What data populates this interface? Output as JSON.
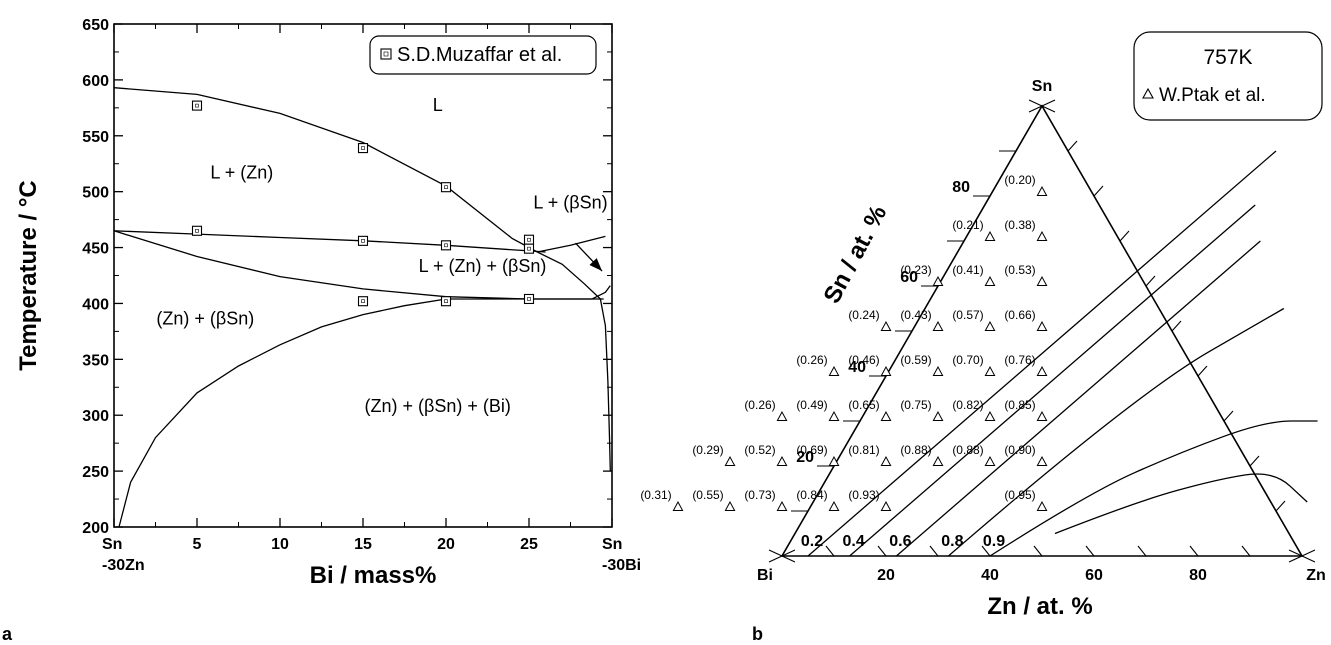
{
  "panel_a": {
    "label": "a",
    "chart_data": {
      "type": "scatter",
      "xlabel": "Bi  / mass%",
      "ylabel": "Temperature / °C",
      "xlim": [
        0,
        30
      ],
      "ylim": [
        200,
        650
      ],
      "xticks": [
        {
          "v": 0,
          "l1": "Sn",
          "l2": "-30Zn"
        },
        {
          "v": 5,
          "l1": "5",
          "l2": ""
        },
        {
          "v": 10,
          "l1": "10",
          "l2": ""
        },
        {
          "v": 15,
          "l1": "15",
          "l2": ""
        },
        {
          "v": 20,
          "l1": "20",
          "l2": ""
        },
        {
          "v": 25,
          "l1": "25",
          "l2": ""
        },
        {
          "v": 30,
          "l1": "Sn",
          "l2": "-30Bi"
        }
      ],
      "yticks": [
        200,
        250,
        300,
        350,
        400,
        450,
        500,
        550,
        600,
        650
      ],
      "legend": {
        "text": "S.D.Muzaffar et al.",
        "placement": "top-right",
        "marker": "square"
      },
      "series": [
        {
          "name": "S.D.Muzaffar et al.",
          "marker": "square",
          "x": [
            5,
            5,
            15,
            15,
            15,
            20,
            20,
            20,
            25,
            25,
            25
          ],
          "y": [
            577,
            465,
            539,
            456,
            402,
            504,
            452,
            402,
            457,
            449,
            404
          ]
        }
      ],
      "phase_boundaries": [
        {
          "x": [
            0,
            5,
            10,
            15,
            20,
            24,
            25.5
          ],
          "y": [
            593,
            587,
            570,
            544,
            505,
            458,
            446
          ]
        },
        {
          "x": [
            0,
            5,
            10,
            15,
            20,
            25,
            26
          ],
          "y": [
            465,
            462,
            459,
            456,
            452,
            447,
            446
          ]
        },
        {
          "x": [
            0,
            5,
            10,
            15,
            20,
            25,
            28.8
          ],
          "y": [
            465,
            442,
            424,
            413,
            406,
            404,
            404
          ]
        },
        {
          "x": [
            25.5,
            27.5,
            29.6
          ],
          "y": [
            446,
            452,
            460
          ]
        },
        {
          "x": [
            25.5,
            27,
            28.3,
            29.3
          ],
          "y": [
            446,
            435,
            418,
            404
          ]
        },
        {
          "x": [
            0.3,
            1,
            2.5,
            5,
            7.5,
            10,
            12.5,
            15,
            17.5,
            20
          ],
          "y": [
            200,
            240,
            280,
            320,
            344,
            363,
            379,
            390,
            398,
            404
          ]
        },
        {
          "x": [
            20,
            25,
            29.5
          ],
          "y": [
            404,
            404,
            404
          ]
        },
        {
          "x": [
            28.8,
            29.6,
            29.9
          ],
          "y": [
            404,
            410,
            416
          ]
        },
        {
          "x": [
            29.3,
            29.6,
            29.75,
            29.85,
            29.9
          ],
          "y": [
            404,
            380,
            330,
            280,
            250
          ]
        }
      ],
      "region_labels": [
        {
          "text": "L",
          "x": 19.5,
          "y": 572
        },
        {
          "text": "L + (Zn)",
          "x": 7.7,
          "y": 512
        },
        {
          "text": "L + (βSn)",
          "x": 27.5,
          "y": 485
        },
        {
          "text": "L + (Zn) + (βSn)",
          "x": 22.2,
          "y": 428
        },
        {
          "text": "(Zn) + (βSn)",
          "x": 5.5,
          "y": 381
        },
        {
          "text": "(Zn) + (βSn) + (Bi)",
          "x": 19.5,
          "y": 303
        }
      ],
      "annotation_arrow": {
        "from": {
          "x": 27.8,
          "y": 454
        },
        "to": {
          "x": 29.4,
          "y": 429
        }
      }
    }
  },
  "panel_b": {
    "label": "b",
    "chart_data": {
      "type": "scatter",
      "diagram": "ternary",
      "title": "757K",
      "corners": {
        "top": "Sn",
        "left": "Bi",
        "right": "Zn"
      },
      "xlabel": "Zn  / at. %",
      "ylabel": "Sn  / at. %",
      "xticks": [
        20,
        40,
        60,
        80
      ],
      "yticks": [
        20,
        40,
        60,
        80
      ],
      "legend": {
        "text": "W.Ptak et al.",
        "placement": "top-right",
        "marker": "triangle"
      },
      "points": [
        {
          "zn": 10,
          "sn": 80,
          "label": "(0.20)"
        },
        {
          "zn": 5,
          "sn": 70,
          "label": "(0.21)"
        },
        {
          "zn": 15,
          "sn": 70,
          "label": "(0.38)"
        },
        {
          "zn": 0,
          "sn": 60,
          "label": "(0.23)"
        },
        {
          "zn": 10,
          "sn": 60,
          "label": "(0.41)"
        },
        {
          "zn": 20,
          "sn": 60,
          "label": "(0.53)"
        },
        {
          "zn": -5,
          "sn": 50,
          "label": "(0.24)"
        },
        {
          "zn": 5,
          "sn": 50,
          "label": "(0.43)"
        },
        {
          "zn": 15,
          "sn": 50,
          "label": "(0.57)"
        },
        {
          "zn": 25,
          "sn": 50,
          "label": "(0.66)"
        },
        {
          "zn": -10,
          "sn": 40,
          "label": "(0.26)"
        },
        {
          "zn": 0,
          "sn": 40,
          "label": "(0.46)"
        },
        {
          "zn": 10,
          "sn": 40,
          "label": "(0.59)"
        },
        {
          "zn": 20,
          "sn": 40,
          "label": "(0.70)"
        },
        {
          "zn": 30,
          "sn": 40,
          "label": "(0.76)"
        },
        {
          "zn": -15,
          "sn": 30,
          "label": "(0.26)"
        },
        {
          "zn": -5,
          "sn": 30,
          "label": "(0.49)"
        },
        {
          "zn": 5,
          "sn": 30,
          "label": "(0.65)"
        },
        {
          "zn": 15,
          "sn": 30,
          "label": "(0.75)"
        },
        {
          "zn": 25,
          "sn": 30,
          "label": "(0.82)"
        },
        {
          "zn": 35,
          "sn": 30,
          "label": "(0.85)"
        },
        {
          "zn": -20,
          "sn": 20,
          "label": "(0.29)"
        },
        {
          "zn": -10,
          "sn": 20,
          "label": "(0.52)"
        },
        {
          "zn": 0,
          "sn": 20,
          "label": "(0.69)"
        },
        {
          "zn": 10,
          "sn": 20,
          "label": "(0.81)"
        },
        {
          "zn": 20,
          "sn": 20,
          "label": "(0.88)"
        },
        {
          "zn": 30,
          "sn": 20,
          "label": "(0.88)"
        },
        {
          "zn": 40,
          "sn": 20,
          "label": "(0.90)"
        },
        {
          "zn": -25,
          "sn": 10,
          "label": "(0.31)"
        },
        {
          "zn": -15,
          "sn": 10,
          "label": "(0.55)"
        },
        {
          "zn": -5,
          "sn": 10,
          "label": "(0.73)"
        },
        {
          "zn": 5,
          "sn": 10,
          "label": "(0.84)"
        },
        {
          "zn": 15,
          "sn": 10,
          "label": "(0.93)"
        },
        {
          "zn": 45,
          "sn": 10,
          "label": "(0.95)"
        }
      ],
      "iso_activity_lines": [
        {
          "label": "0.2",
          "pts": [
            [
              5,
              0
            ],
            [
              50,
              90
            ]
          ]
        },
        {
          "label": "0.4",
          "pts": [
            [
              13,
              0
            ],
            [
              52,
              78
            ]
          ]
        },
        {
          "label": "0.6",
          "pts": [
            [
              22,
              0
            ],
            [
              57,
              70
            ]
          ]
        },
        {
          "label": "0.8",
          "pts": [
            [
              32,
              0
            ],
            [
              50,
              36
            ],
            [
              69,
              55
            ]
          ]
        },
        {
          "label": "0.9",
          "pts": [
            [
              40,
              0
            ],
            [
              52,
              14
            ],
            [
              65,
              23
            ],
            [
              78,
              30
            ],
            [
              88,
              30
            ]
          ]
        },
        {
          "label": "",
          "pts": [
            [
              50,
              5
            ],
            [
              62,
              12
            ],
            [
              75,
              17
            ],
            [
              85,
              19
            ],
            [
              95,
              12
            ]
          ]
        }
      ]
    }
  }
}
